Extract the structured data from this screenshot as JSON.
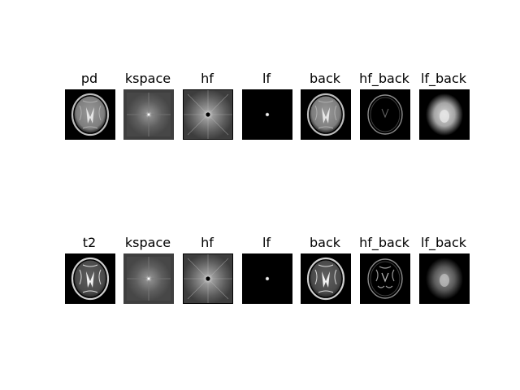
{
  "figure": {
    "rows": [
      {
        "panels": [
          {
            "title": "pd",
            "kind": "brain"
          },
          {
            "title": "kspace",
            "kind": "kspace"
          },
          {
            "title": "hf",
            "kind": "hf"
          },
          {
            "title": "lf",
            "kind": "lf"
          },
          {
            "title": "back",
            "kind": "brain"
          },
          {
            "title": "hf_back",
            "kind": "edges"
          },
          {
            "title": "lf_back",
            "kind": "blur"
          }
        ]
      },
      {
        "panels": [
          {
            "title": "t2",
            "kind": "brain"
          },
          {
            "title": "kspace",
            "kind": "kspace"
          },
          {
            "title": "hf",
            "kind": "hf"
          },
          {
            "title": "lf",
            "kind": "lf"
          },
          {
            "title": "back",
            "kind": "brain"
          },
          {
            "title": "hf_back",
            "kind": "edges"
          },
          {
            "title": "lf_back",
            "kind": "blur"
          }
        ]
      }
    ]
  }
}
